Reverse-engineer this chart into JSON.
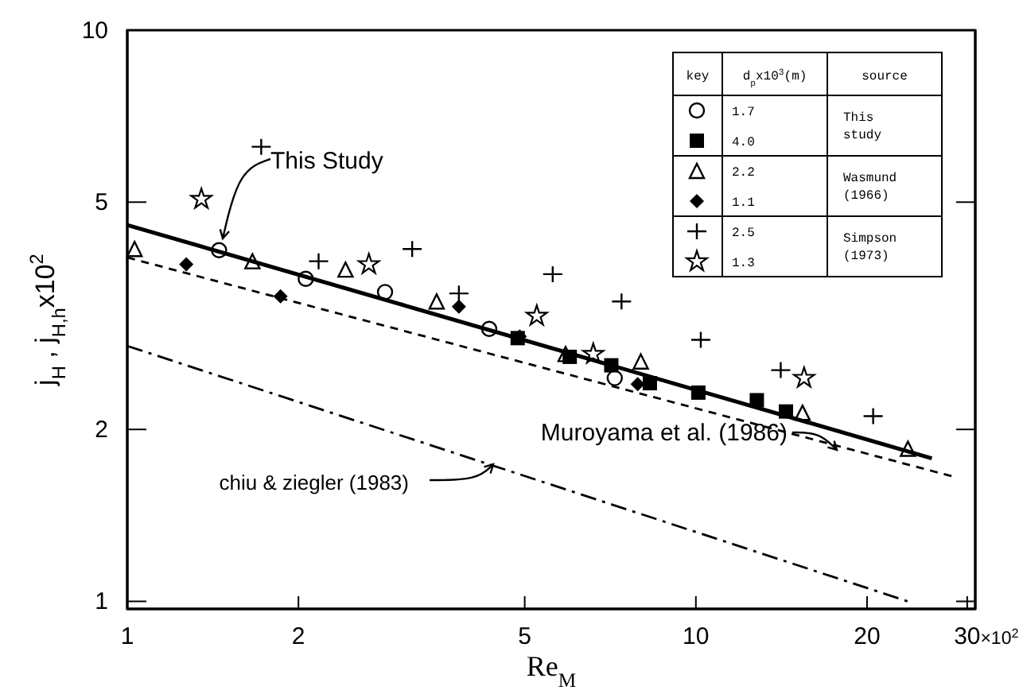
{
  "chart_data": {
    "type": "scatter",
    "xlabel": "Re$_{M}$",
    "ylabel": "j$_{H}$ ,  j$_{H,h}$x10$^{2}$",
    "log": "xy",
    "xlim": [
      1,
      31
    ],
    "ylim": [
      0.97,
      10
    ],
    "xticks": [
      1,
      2,
      5,
      10,
      20,
      30
    ],
    "yticks": [
      1,
      2,
      5,
      10
    ],
    "grid": false,
    "legend": "top right",
    "legend_title": "key",
    "annotations": [
      "d$_{p}$x10$^{3}$(m)",
      "source",
      "This study",
      "Wasmund (1966)",
      "Simpson (1973)",
      "×10$^{2}$"
    ],
    "series": [
      {
        "name": "1.7",
        "color": "#000000",
        "marker": "circle",
        "x": [
          1.45,
          2.06,
          2.84,
          4.33,
          7.2
        ],
        "values": [
          4.12,
          3.67,
          3.48,
          3.0,
          2.46
        ]
      },
      {
        "name": "4.0",
        "color": "#000000",
        "marker": "square",
        "x": [
          4.86,
          6.0,
          7.1,
          8.3,
          10.1,
          12.8,
          14.4
        ],
        "values": [
          2.89,
          2.68,
          2.59,
          2.41,
          2.32,
          2.25,
          2.15
        ]
      },
      {
        "name": "2.2",
        "color": "#000000",
        "marker": "triangle",
        "x": [
          1.03,
          1.66,
          2.42,
          3.5,
          5.9,
          8.0,
          15.4,
          23.6
        ],
        "values": [
          4.14,
          3.94,
          3.81,
          3.35,
          2.71,
          2.63,
          2.14,
          1.85
        ]
      },
      {
        "name": "1.1",
        "color": "#000000",
        "marker": "diamond",
        "x": [
          1.27,
          1.86,
          3.83,
          4.9,
          7.9
        ],
        "values": [
          3.89,
          3.42,
          3.28,
          2.91,
          2.4
        ]
      },
      {
        "name": "2.5",
        "color": "#000000",
        "marker": "cross",
        "x": [
          1.72,
          2.17,
          3.17,
          3.83,
          5.6,
          7.4,
          10.2,
          14.1,
          20.5
        ],
        "values": [
          6.25,
          3.94,
          4.14,
          3.46,
          3.74,
          3.35,
          2.87,
          2.54,
          2.11
        ]
      },
      {
        "name": "1.3",
        "color": "#000000",
        "marker": "star",
        "x": [
          1.35,
          2.66,
          5.25,
          6.6,
          15.5
        ],
        "values": [
          5.06,
          3.89,
          3.16,
          2.71,
          2.46
        ]
      },
      {
        "name": "This Study",
        "type": "line",
        "color": "#000000",
        "line_style": "solid",
        "marker": "none",
        "x": [
          1,
          26
        ],
        "values": [
          4.56,
          1.78
        ]
      },
      {
        "name": "Muroyama et al. (1986)",
        "type": "line",
        "color": "#000000",
        "line_style": "dashed",
        "marker": "none",
        "x": [
          1,
          28.6
        ],
        "values": [
          4.0,
          1.65
        ]
      },
      {
        "name": "chiu & ziegler (1983)",
        "type": "line",
        "color": "#000000",
        "line_style": "dashdot",
        "marker": "none",
        "x": [
          1,
          23.6
        ],
        "values": [
          2.8,
          1.0
        ]
      }
    ]
  }
}
